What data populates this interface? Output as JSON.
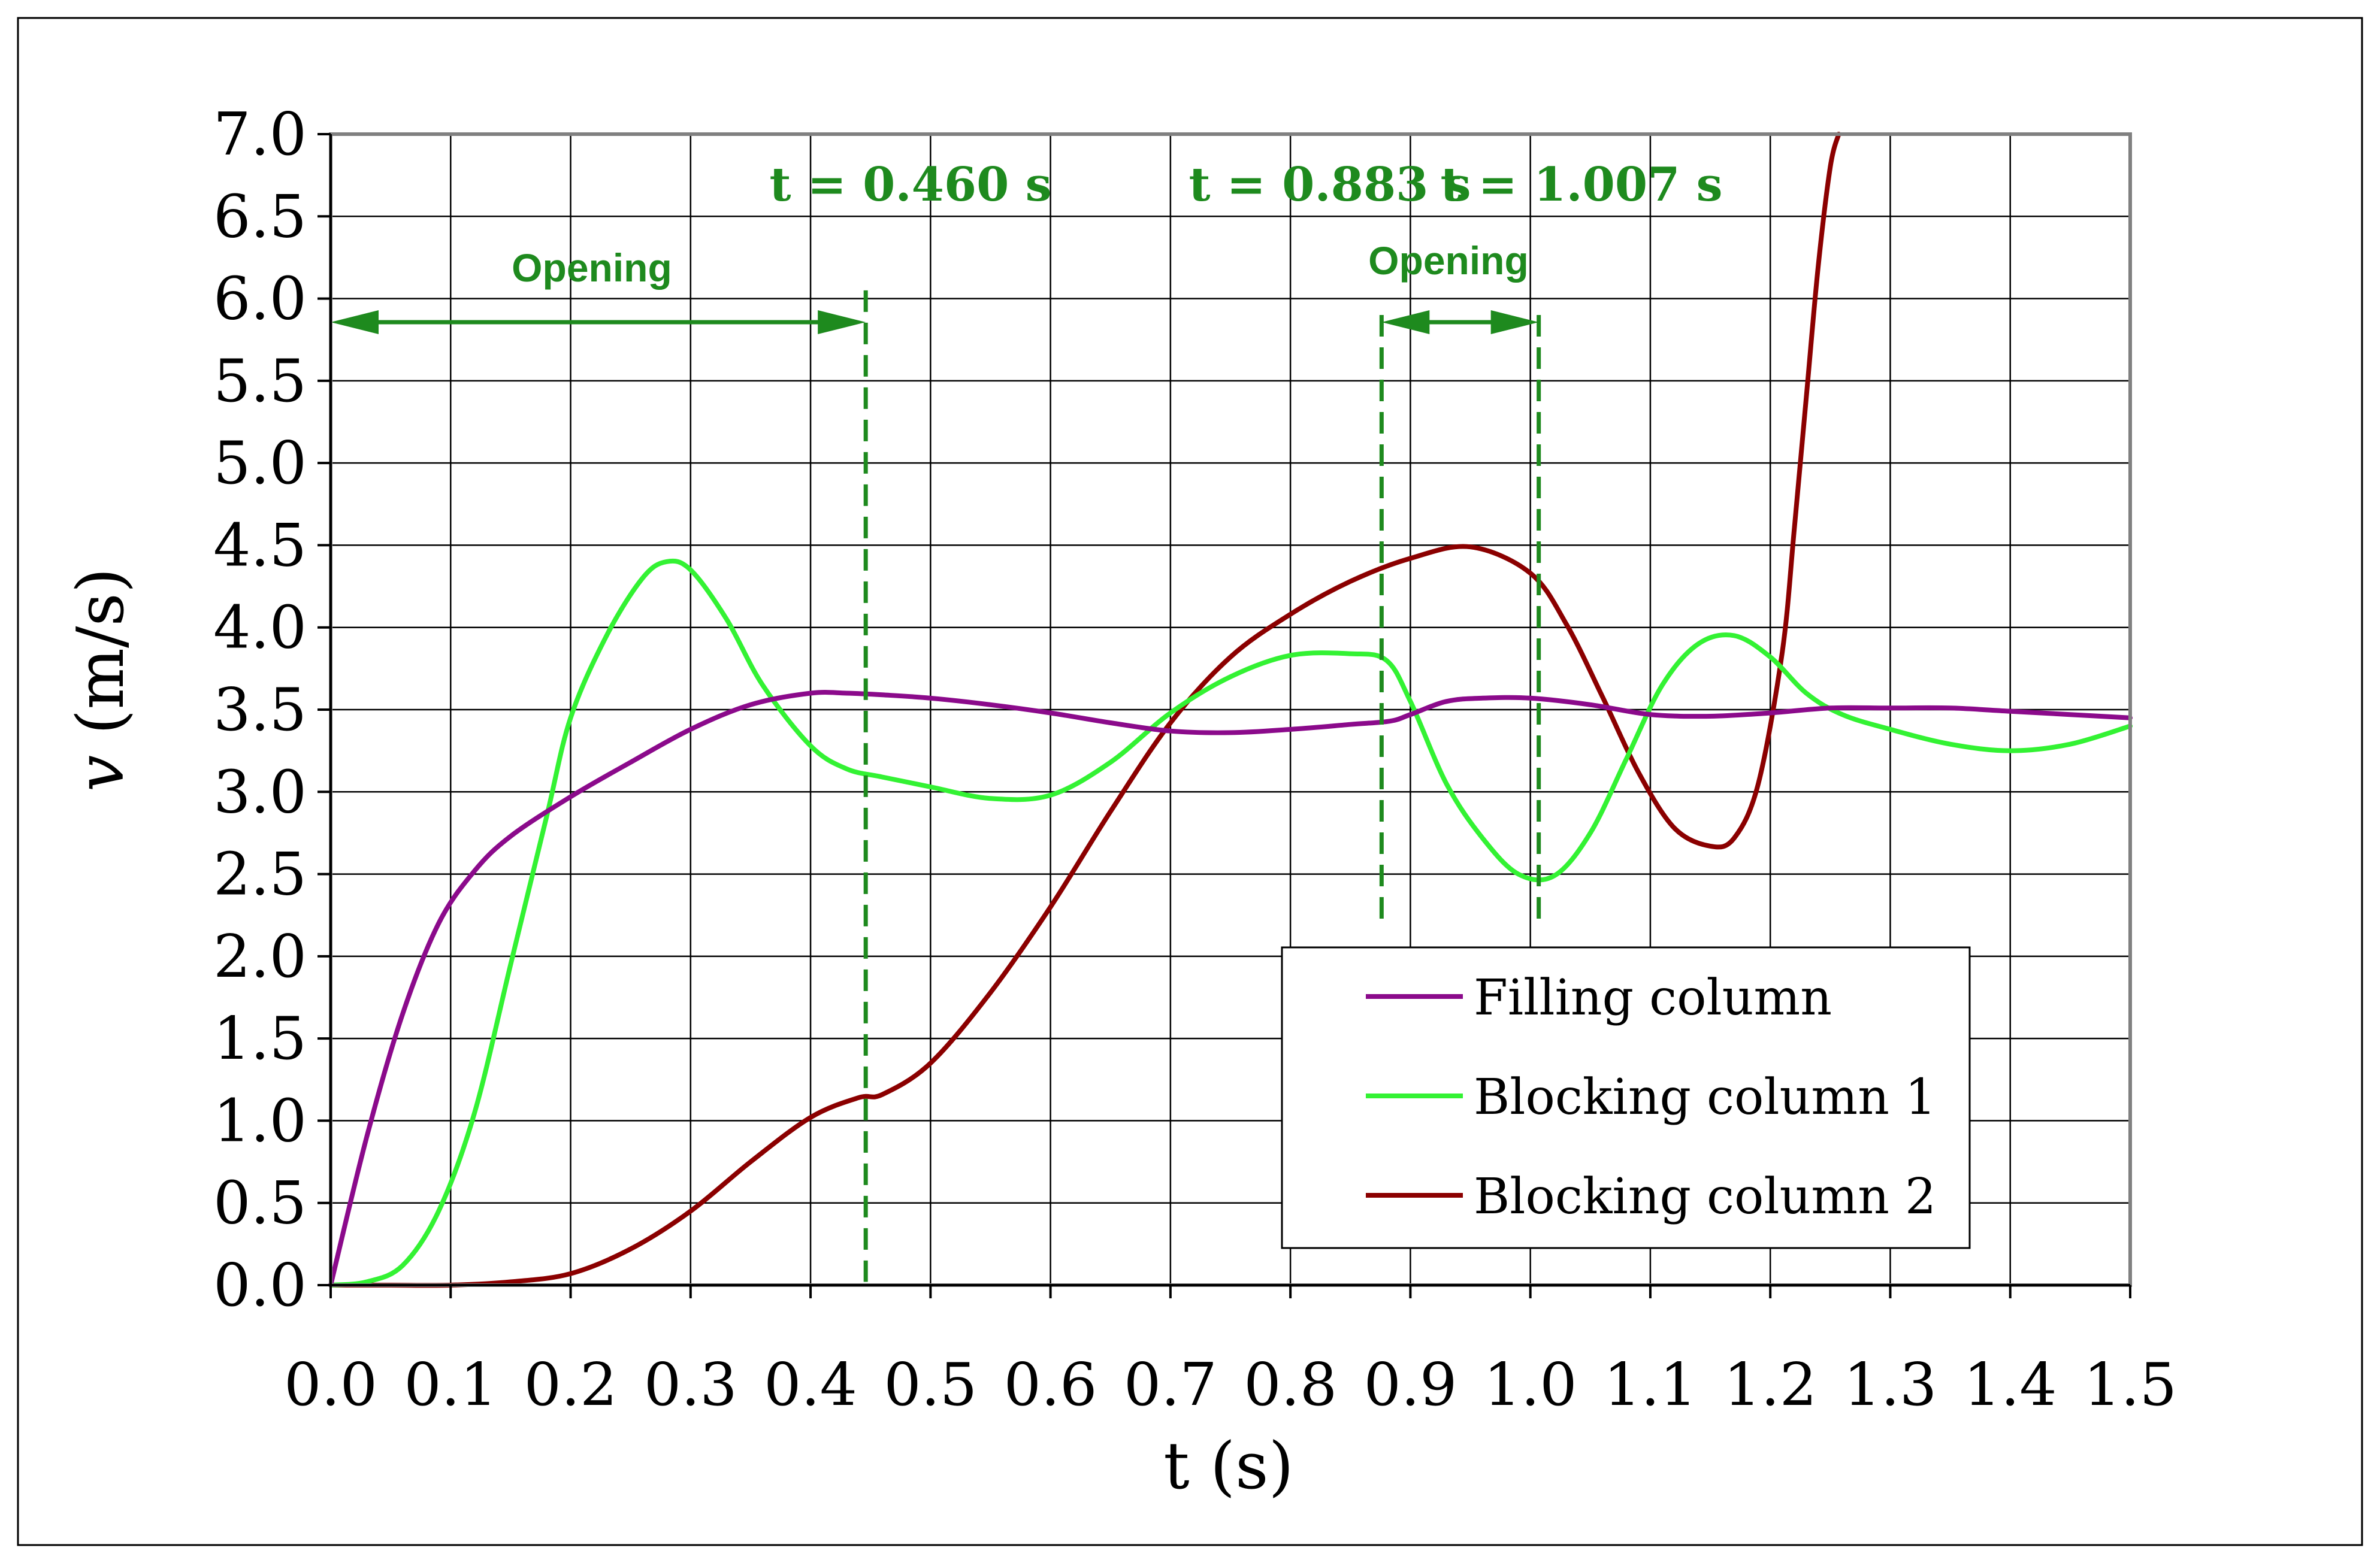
{
  "chart_data": {
    "type": "line",
    "xlabel": "t (s)",
    "ylabel_italic": "v",
    "ylabel_rest": " (m/s)",
    "xlim": [
      0.0,
      1.5
    ],
    "ylim": [
      0.0,
      7.0
    ],
    "grid": true,
    "x_ticks": [
      "0.0",
      "0.1",
      "0.2",
      "0.3",
      "0.4",
      "0.5",
      "0.6",
      "0.7",
      "0.8",
      "0.9",
      "1.0",
      "1.1",
      "1.2",
      "1.3",
      "1.4",
      "1.5"
    ],
    "y_ticks": [
      "0.0",
      "0.5",
      "1.0",
      "1.5",
      "2.0",
      "2.5",
      "3.0",
      "3.5",
      "4.0",
      "4.5",
      "5.0",
      "5.5",
      "6.0",
      "6.5",
      "7.0"
    ],
    "legend_position": "lower-right",
    "series": [
      {
        "name": "Filling column",
        "color": "#8B0A8B",
        "x": [
          0.0,
          0.03,
          0.06,
          0.09,
          0.12,
          0.15,
          0.2,
          0.25,
          0.3,
          0.35,
          0.4,
          0.43,
          0.46,
          0.5,
          0.55,
          0.6,
          0.65,
          0.7,
          0.75,
          0.8,
          0.85,
          0.883,
          0.9,
          0.93,
          0.96,
          1.0,
          1.05,
          1.1,
          1.15,
          1.2,
          1.25,
          1.3,
          1.35,
          1.4,
          1.45,
          1.5
        ],
        "y": [
          0.0,
          0.9,
          1.65,
          2.2,
          2.52,
          2.73,
          2.97,
          3.18,
          3.38,
          3.53,
          3.6,
          3.6,
          3.59,
          3.57,
          3.53,
          3.48,
          3.42,
          3.37,
          3.36,
          3.38,
          3.41,
          3.43,
          3.47,
          3.55,
          3.57,
          3.57,
          3.53,
          3.47,
          3.46,
          3.48,
          3.51,
          3.51,
          3.51,
          3.49,
          3.47,
          3.45
        ]
      },
      {
        "name": "Blocking column 1",
        "color": "#33F233",
        "x": [
          0.0,
          0.03,
          0.06,
          0.09,
          0.12,
          0.15,
          0.18,
          0.2,
          0.23,
          0.26,
          0.28,
          0.3,
          0.33,
          0.36,
          0.4,
          0.43,
          0.46,
          0.5,
          0.55,
          0.6,
          0.65,
          0.7,
          0.75,
          0.8,
          0.85,
          0.88,
          0.9,
          0.93,
          0.96,
          0.99,
          1.02,
          1.05,
          1.08,
          1.11,
          1.14,
          1.17,
          1.2,
          1.23,
          1.26,
          1.3,
          1.35,
          1.4,
          1.45,
          1.5
        ],
        "y": [
          0.0,
          0.02,
          0.12,
          0.45,
          1.05,
          1.95,
          2.85,
          3.45,
          3.95,
          4.3,
          4.4,
          4.35,
          4.05,
          3.65,
          3.28,
          3.14,
          3.09,
          3.03,
          2.96,
          2.98,
          3.18,
          3.48,
          3.7,
          3.83,
          3.84,
          3.8,
          3.55,
          3.05,
          2.72,
          2.5,
          2.49,
          2.75,
          3.2,
          3.65,
          3.9,
          3.95,
          3.82,
          3.6,
          3.47,
          3.38,
          3.29,
          3.25,
          3.29,
          3.4
        ]
      },
      {
        "name": "Blocking column 2",
        "color": "#8B0000",
        "x": [
          0.0,
          0.05,
          0.1,
          0.15,
          0.2,
          0.25,
          0.3,
          0.35,
          0.4,
          0.44,
          0.46,
          0.5,
          0.55,
          0.6,
          0.65,
          0.7,
          0.75,
          0.8,
          0.85,
          0.9,
          0.95,
          1.0,
          1.03,
          1.06,
          1.09,
          1.12,
          1.15,
          1.17,
          1.19,
          1.21,
          1.22,
          1.23,
          1.24,
          1.25,
          1.257
        ],
        "y": [
          0.0,
          0.0,
          0.0,
          0.02,
          0.07,
          0.22,
          0.45,
          0.75,
          1.02,
          1.14,
          1.16,
          1.35,
          1.78,
          2.3,
          2.88,
          3.42,
          3.82,
          4.08,
          4.28,
          4.42,
          4.49,
          4.33,
          4.02,
          3.58,
          3.12,
          2.78,
          2.67,
          2.72,
          3.05,
          3.85,
          4.6,
          5.4,
          6.2,
          6.8,
          7.0
        ]
      }
    ],
    "annotations": {
      "t1": "t = 0.460 s",
      "t2": "t = 0.883 s",
      "t3": "t = 1.007 s",
      "opening1": "Opening",
      "opening2": "Opening"
    },
    "markers": {
      "t1_x": 0.446,
      "t2_x": 0.876,
      "t3_x": 1.007,
      "dashed_top_t1": 6.05,
      "dashed_top_t2t3": 5.9,
      "dashed_bottom_t1": 0.02,
      "dashed_bottom_t2t3": 2.2,
      "arrow1_y": 5.9,
      "arrow2_y": 5.9
    },
    "annotation_color": "#1E8A1E"
  }
}
